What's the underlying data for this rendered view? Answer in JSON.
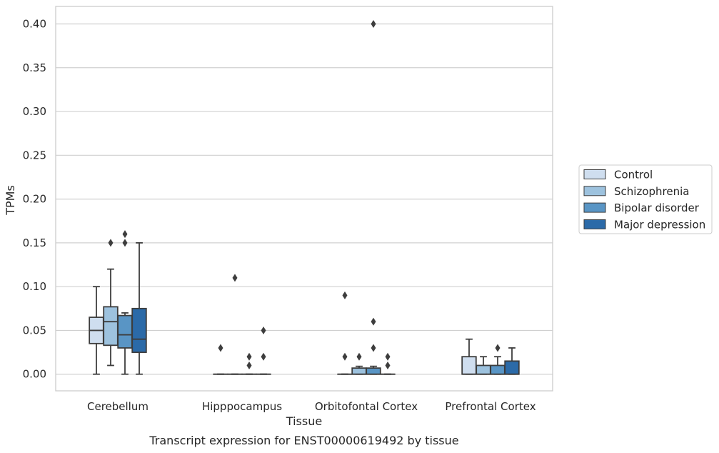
{
  "chart_data": {
    "type": "boxplot",
    "caption": "Transcript expression for ENST00000619492 by tissue",
    "xlabel": "Tissue",
    "ylabel": "TPMs",
    "ylim": [
      -0.019,
      0.42
    ],
    "yticks": [
      0.0,
      0.05,
      0.1,
      0.15,
      0.2,
      0.25,
      0.3,
      0.35,
      0.4
    ],
    "ytick_labels": [
      "0.00",
      "0.05",
      "0.10",
      "0.15",
      "0.20",
      "0.25",
      "0.30",
      "0.35",
      "0.40"
    ],
    "grid": "horizontal",
    "legend_position": "right",
    "categories": [
      "Cerebellum",
      "Hipppocampus",
      "Orbitofontal Cortex",
      "Prefrontal Cortex"
    ],
    "series": [
      {
        "name": "Control",
        "color": "#cfdeef",
        "boxes": [
          {
            "whislo": 0.0,
            "q1": 0.035,
            "med": 0.05,
            "q3": 0.065,
            "whishi": 0.1,
            "fliers": []
          },
          {
            "whislo": 0.0,
            "q1": 0.0,
            "med": 0.0,
            "q3": 0.0,
            "whishi": 0.0,
            "fliers": [
              0.03
            ]
          },
          {
            "whislo": 0.0,
            "q1": 0.0,
            "med": 0.0,
            "q3": 0.0,
            "whishi": 0.0,
            "fliers": [
              0.02,
              0.09
            ]
          },
          {
            "whislo": 0.0,
            "q1": 0.0,
            "med": 0.0,
            "q3": 0.02,
            "whishi": 0.04,
            "fliers": []
          }
        ]
      },
      {
        "name": "Schizophrenia",
        "color": "#9dc2de",
        "boxes": [
          {
            "whislo": 0.01,
            "q1": 0.033,
            "med": 0.06,
            "q3": 0.077,
            "whishi": 0.12,
            "fliers": [
              0.15
            ]
          },
          {
            "whislo": 0.0,
            "q1": 0.0,
            "med": 0.0,
            "q3": 0.0,
            "whishi": 0.0,
            "fliers": [
              0.11
            ]
          },
          {
            "whislo": 0.0,
            "q1": 0.0,
            "med": 0.0,
            "q3": 0.007,
            "whishi": 0.009,
            "fliers": [
              0.02
            ]
          },
          {
            "whislo": 0.0,
            "q1": 0.0,
            "med": 0.0,
            "q3": 0.01,
            "whishi": 0.02,
            "fliers": []
          }
        ]
      },
      {
        "name": "Bipolar disorder",
        "color": "#5995c5",
        "boxes": [
          {
            "whislo": 0.0,
            "q1": 0.03,
            "med": 0.045,
            "q3": 0.067,
            "whishi": 0.07,
            "fliers": [
              0.15,
              0.16
            ]
          },
          {
            "whislo": 0.0,
            "q1": 0.0,
            "med": 0.0,
            "q3": 0.0,
            "whishi": 0.0,
            "fliers": [
              0.01,
              0.02
            ]
          },
          {
            "whislo": 0.0,
            "q1": 0.0,
            "med": 0.0,
            "q3": 0.007,
            "whishi": 0.009,
            "fliers": [
              0.03,
              0.06,
              0.4
            ]
          },
          {
            "whislo": 0.0,
            "q1": 0.0,
            "med": 0.0,
            "q3": 0.01,
            "whishi": 0.02,
            "fliers": [
              0.03
            ]
          }
        ]
      },
      {
        "name": "Major depression",
        "color": "#2b6aa8",
        "boxes": [
          {
            "whislo": 0.0,
            "q1": 0.025,
            "med": 0.04,
            "q3": 0.075,
            "whishi": 0.15,
            "fliers": []
          },
          {
            "whislo": 0.0,
            "q1": 0.0,
            "med": 0.0,
            "q3": 0.0,
            "whishi": 0.0,
            "fliers": [
              0.02,
              0.05
            ]
          },
          {
            "whislo": 0.0,
            "q1": 0.0,
            "med": 0.0,
            "q3": 0.0,
            "whishi": 0.0,
            "fliers": [
              0.01,
              0.02
            ]
          },
          {
            "whislo": 0.0,
            "q1": 0.0,
            "med": 0.0,
            "q3": 0.015,
            "whishi": 0.03,
            "fliers": []
          }
        ]
      }
    ]
  }
}
